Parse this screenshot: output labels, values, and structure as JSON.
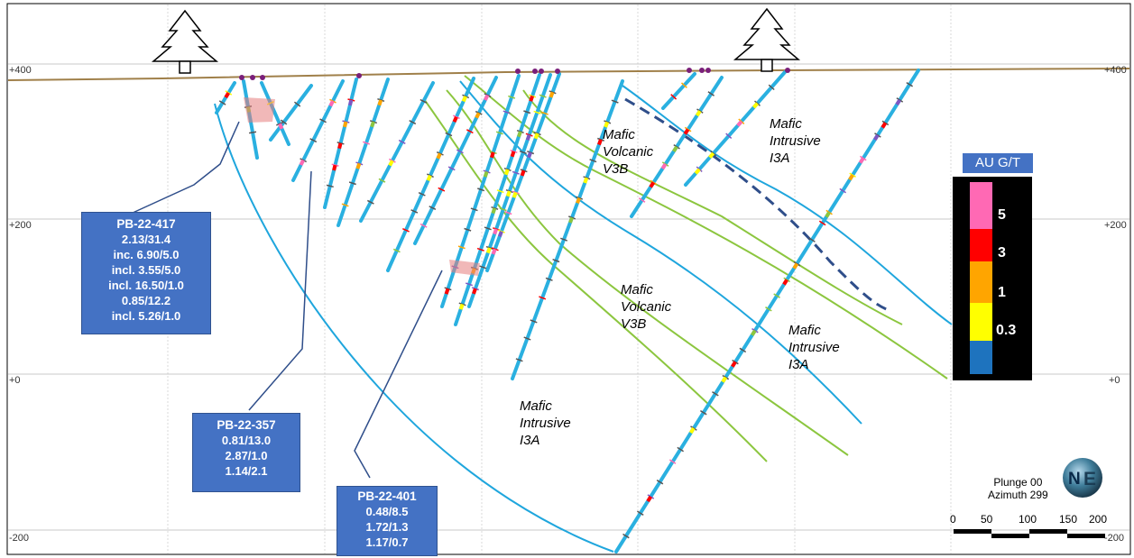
{
  "elevation_labels": {
    "left": [
      "+400",
      "+200",
      "+0",
      "-200"
    ],
    "right": [
      "+400",
      "+200",
      "+0",
      "-200"
    ]
  },
  "callouts": [
    {
      "title": "PB-22-417",
      "lines": [
        "2.13/31.4",
        "inc. 6.90/5.0",
        "incl. 3.55/5.0",
        "incl. 16.50/1.0",
        "0.85/12.2",
        "incl. 5.26/1.0"
      ]
    },
    {
      "title": "PB-22-357",
      "lines": [
        "0.81/13.0",
        "2.87/1.0",
        "1.14/2.1"
      ]
    },
    {
      "title": "PB-22-401",
      "lines": [
        "0.48/8.5",
        "1.72/1.3",
        "1.17/0.7"
      ]
    }
  ],
  "unit_labels": [
    {
      "lines": [
        "Mafic",
        "Volcanic",
        "V3B"
      ]
    },
    {
      "lines": [
        "Mafic",
        "Intrusive",
        "I3A"
      ]
    },
    {
      "lines": [
        "Mafic",
        "Volcanic",
        "V3B"
      ]
    },
    {
      "lines": [
        "Mafic",
        "Intrusive",
        "I3A"
      ]
    },
    {
      "lines": [
        "Mafic",
        "Intrusive",
        "I3A"
      ]
    }
  ],
  "legend": {
    "title": "AU G/T",
    "values": [
      "5",
      "3",
      "1",
      "0.3"
    ],
    "colors": [
      "#FF69B4",
      "#FF0000",
      "#FFA500",
      "#FFFF00",
      "#1E73BE"
    ]
  },
  "orientation": {
    "plunge": "Plunge 00",
    "azimuth": "Azimuth 299",
    "compass_letters": [
      "N",
      "E"
    ]
  },
  "scale_bar": {
    "labels": [
      "0",
      "50",
      "100",
      "150",
      "200"
    ]
  },
  "colors": {
    "drillhole": "#2ab0e0",
    "contact_green": "#8cc63f",
    "contact_blue": "#1fa6dd",
    "fault": "#2f4e8a",
    "topography": "#a0804a",
    "callout": "#4472C4"
  },
  "icons": [
    "tree-icon",
    "tree-icon",
    "compass-globe-icon"
  ]
}
